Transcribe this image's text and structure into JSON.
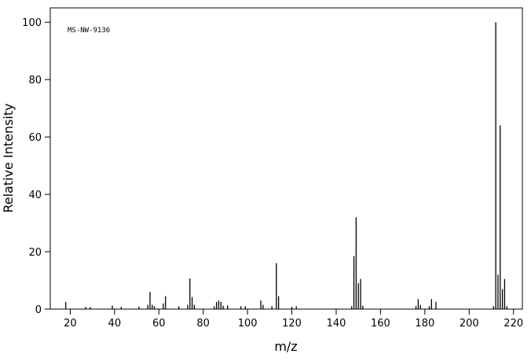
{
  "chart_data": {
    "type": "stem",
    "annotation": "MS-NW-9136",
    "xlabel": "m/z",
    "ylabel": "Relative Intensity",
    "x": [
      18,
      27,
      29,
      39,
      43,
      51,
      55,
      56,
      57,
      58,
      62,
      63,
      69,
      73,
      74,
      75,
      76,
      85,
      86,
      87,
      88,
      89,
      91,
      97,
      99,
      106,
      107,
      111,
      113,
      114,
      120,
      122,
      147,
      148,
      149,
      150,
      151,
      152,
      176,
      177,
      178,
      182,
      183,
      185,
      211,
      212,
      213,
      214,
      215,
      216,
      217
    ],
    "values": [
      2.5,
      0.8,
      0.7,
      1.2,
      0.8,
      0.9,
      1.5,
      6,
      1.5,
      1,
      2,
      4.5,
      1,
      1.5,
      10.7,
      4.2,
      1.5,
      1,
      2.5,
      3,
      2.5,
      1.2,
      1.3,
      1,
      1,
      3,
      1.5,
      1,
      16,
      4.5,
      0.8,
      1,
      1,
      18.5,
      32,
      9,
      10.5,
      1.2,
      1,
      3.5,
      1.5,
      1,
      3.5,
      2.5,
      1,
      100,
      12,
      64,
      7,
      10.5,
      1
    ],
    "color": "#000000",
    "xlim": [
      11,
      224
    ],
    "ylim": [
      0,
      105
    ],
    "xticks": [
      20,
      40,
      60,
      80,
      100,
      120,
      140,
      160,
      180,
      200,
      220
    ],
    "yticks": [
      0,
      20,
      40,
      60,
      80,
      100
    ]
  }
}
